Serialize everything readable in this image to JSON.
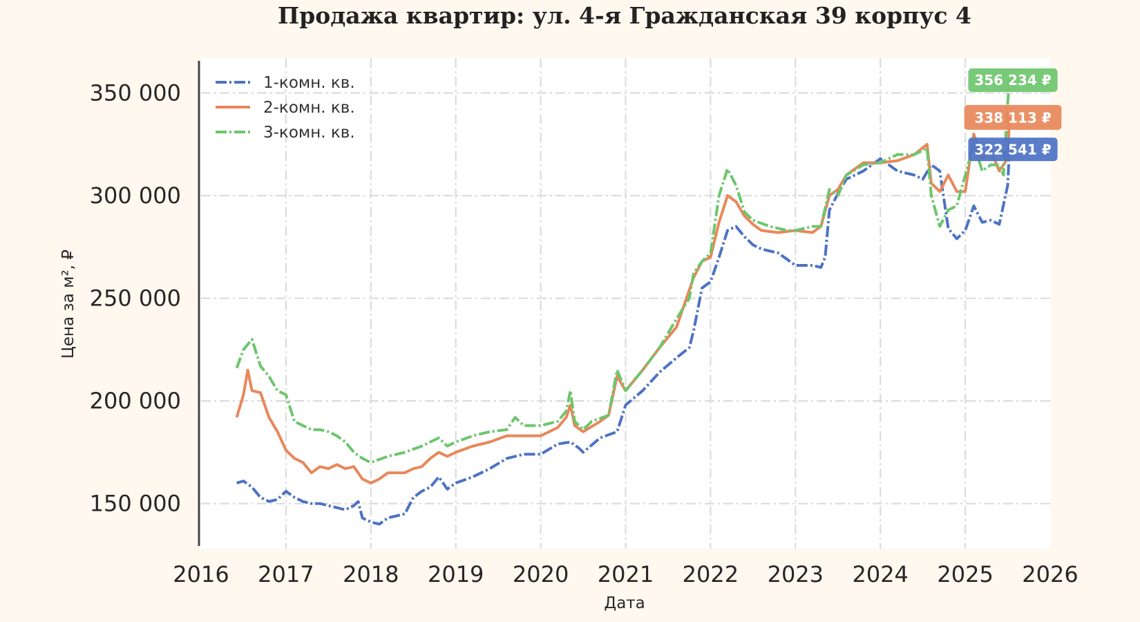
{
  "chart_data": {
    "type": "line",
    "title": "Продажа квартир: ул. 4-я Гражданская 39 корпус 4",
    "xlabel": "Дата",
    "ylabel": "Цена за м², ₽",
    "xlim": [
      2016.0,
      2026.0
    ],
    "ylim": [
      128000,
      367000
    ],
    "x_ticks": [
      2016,
      2017,
      2018,
      2019,
      2020,
      2021,
      2022,
      2023,
      2024,
      2025,
      2026
    ],
    "y_ticks": [
      {
        "value": 150000,
        "label": "150 000"
      },
      {
        "value": 200000,
        "label": "200 000"
      },
      {
        "value": 250000,
        "label": "250 000"
      },
      {
        "value": 300000,
        "label": "300 000"
      },
      {
        "value": 350000,
        "label": "350 000"
      }
    ],
    "grid": true,
    "legend": "top-left",
    "series": [
      {
        "name": "1-комн. кв.",
        "color": "#4c72c4",
        "dash": "dashdot",
        "end_label": "322 541 ₽",
        "x": [
          2016.42,
          2016.5,
          2016.6,
          2016.7,
          2016.8,
          2016.9,
          2017.0,
          2017.1,
          2017.2,
          2017.3,
          2017.4,
          2017.5,
          2017.6,
          2017.7,
          2017.8,
          2017.85,
          2017.9,
          2018.0,
          2018.1,
          2018.2,
          2018.3,
          2018.4,
          2018.5,
          2018.6,
          2018.7,
          2018.8,
          2018.9,
          2019.0,
          2019.2,
          2019.4,
          2019.6,
          2019.8,
          2020.0,
          2020.2,
          2020.35,
          2020.45,
          2020.5,
          2020.7,
          2020.9,
          2021.0,
          2021.2,
          2021.4,
          2021.6,
          2021.75,
          2021.8,
          2021.9,
          2022.0,
          2022.1,
          2022.2,
          2022.3,
          2022.4,
          2022.5,
          2022.6,
          2022.8,
          2023.0,
          2023.2,
          2023.3,
          2023.35,
          2023.4,
          2023.5,
          2023.6,
          2023.8,
          2024.0,
          2024.1,
          2024.2,
          2024.4,
          2024.5,
          2024.6,
          2024.7,
          2024.8,
          2024.9,
          2025.0,
          2025.1,
          2025.2,
          2025.3,
          2025.4,
          2025.5,
          2025.52
        ],
        "values": [
          160000,
          161000,
          158000,
          153000,
          151000,
          152000,
          156000,
          153000,
          151000,
          150000,
          150000,
          149000,
          148000,
          147000,
          149000,
          151000,
          143000,
          141000,
          140000,
          143000,
          144000,
          145000,
          153000,
          156000,
          158000,
          163000,
          157000,
          160000,
          163000,
          167000,
          172000,
          174000,
          174000,
          179000,
          180000,
          177000,
          175000,
          182000,
          185000,
          198000,
          205000,
          214000,
          221000,
          226000,
          234000,
          255000,
          258000,
          270000,
          283000,
          285000,
          280000,
          276000,
          274000,
          272000,
          266000,
          266000,
          265000,
          270000,
          293000,
          301000,
          308000,
          312000,
          318000,
          315000,
          312000,
          310000,
          308000,
          315000,
          312000,
          284000,
          279000,
          283000,
          295000,
          287000,
          288000,
          286000,
          305000,
          322541
        ]
      },
      {
        "name": "2-комн. кв.",
        "color": "#e8875a",
        "dash": "solid",
        "end_label": "338 113 ₽",
        "x": [
          2016.42,
          2016.5,
          2016.55,
          2016.6,
          2016.7,
          2016.8,
          2016.9,
          2017.0,
          2017.1,
          2017.2,
          2017.3,
          2017.4,
          2017.5,
          2017.6,
          2017.7,
          2017.8,
          2017.9,
          2018.0,
          2018.1,
          2018.2,
          2018.3,
          2018.4,
          2018.5,
          2018.6,
          2018.7,
          2018.8,
          2018.9,
          2019.0,
          2019.2,
          2019.4,
          2019.6,
          2019.8,
          2020.0,
          2020.2,
          2020.3,
          2020.35,
          2020.4,
          2020.5,
          2020.7,
          2020.8,
          2020.9,
          2021.0,
          2021.2,
          2021.4,
          2021.6,
          2021.8,
          2021.9,
          2022.0,
          2022.1,
          2022.2,
          2022.3,
          2022.4,
          2022.5,
          2022.6,
          2022.8,
          2023.0,
          2023.2,
          2023.3,
          2023.4,
          2023.5,
          2023.6,
          2023.8,
          2024.0,
          2024.2,
          2024.4,
          2024.55,
          2024.6,
          2024.7,
          2024.8,
          2024.9,
          2025.0,
          2025.1,
          2025.2,
          2025.3,
          2025.4,
          2025.5,
          2025.52
        ],
        "values": [
          192000,
          203000,
          215000,
          205000,
          204000,
          192000,
          185000,
          176000,
          172000,
          170000,
          165000,
          168000,
          167000,
          169000,
          167000,
          168000,
          162000,
          160000,
          162000,
          165000,
          165000,
          165000,
          167000,
          168000,
          172000,
          175000,
          173000,
          175000,
          178000,
          180000,
          183000,
          183000,
          183000,
          187000,
          192000,
          198000,
          188000,
          185000,
          190000,
          193000,
          212000,
          205000,
          215000,
          226000,
          236000,
          260000,
          268000,
          270000,
          287000,
          300000,
          297000,
          290000,
          286000,
          283000,
          282000,
          283000,
          282000,
          285000,
          300000,
          303000,
          310000,
          316000,
          316000,
          317000,
          320000,
          325000,
          306000,
          302000,
          310000,
          302000,
          302000,
          330000,
          318000,
          322000,
          312000,
          318000,
          338113
        ]
      },
      {
        "name": "3-комн. кв.",
        "color": "#6cc66c",
        "dash": "dashdot",
        "end_label": "356 234 ₽",
        "x": [
          2016.42,
          2016.5,
          2016.6,
          2016.7,
          2016.8,
          2016.9,
          2017.0,
          2017.1,
          2017.2,
          2017.3,
          2017.4,
          2017.5,
          2017.6,
          2017.7,
          2017.8,
          2017.9,
          2018.0,
          2018.2,
          2018.4,
          2018.6,
          2018.7,
          2018.8,
          2018.9,
          2019.0,
          2019.2,
          2019.4,
          2019.6,
          2019.7,
          2019.8,
          2020.0,
          2020.2,
          2020.3,
          2020.35,
          2020.4,
          2020.5,
          2020.6,
          2020.8,
          2020.9,
          2021.0,
          2021.2,
          2021.4,
          2021.6,
          2021.75,
          2021.8,
          2021.9,
          2022.0,
          2022.1,
          2022.2,
          2022.3,
          2022.4,
          2022.5,
          2022.7,
          2022.9,
          2023.0,
          2023.2,
          2023.3,
          2023.4,
          2023.5,
          2023.6,
          2023.8,
          2024.0,
          2024.2,
          2024.4,
          2024.55,
          2024.6,
          2024.7,
          2024.8,
          2024.9,
          2025.0,
          2025.1,
          2025.2,
          2025.3,
          2025.4,
          2025.45,
          2025.5,
          2025.52
        ],
        "values": [
          216000,
          225000,
          230000,
          217000,
          212000,
          205000,
          203000,
          190000,
          188000,
          186000,
          186000,
          185000,
          183000,
          180000,
          175000,
          172000,
          170000,
          173000,
          175000,
          178000,
          180000,
          182000,
          178000,
          180000,
          183000,
          185000,
          186000,
          192000,
          188000,
          188000,
          190000,
          195000,
          205000,
          190000,
          186000,
          190000,
          193000,
          215000,
          205000,
          215000,
          226000,
          240000,
          250000,
          262000,
          268000,
          272000,
          300000,
          313000,
          305000,
          292000,
          288000,
          285000,
          283000,
          283000,
          285000,
          285000,
          303000,
          300000,
          310000,
          315000,
          316000,
          320000,
          320000,
          323000,
          300000,
          285000,
          293000,
          295000,
          310000,
          325000,
          312000,
          315000,
          315000,
          310000,
          345000,
          356234
        ]
      }
    ]
  }
}
